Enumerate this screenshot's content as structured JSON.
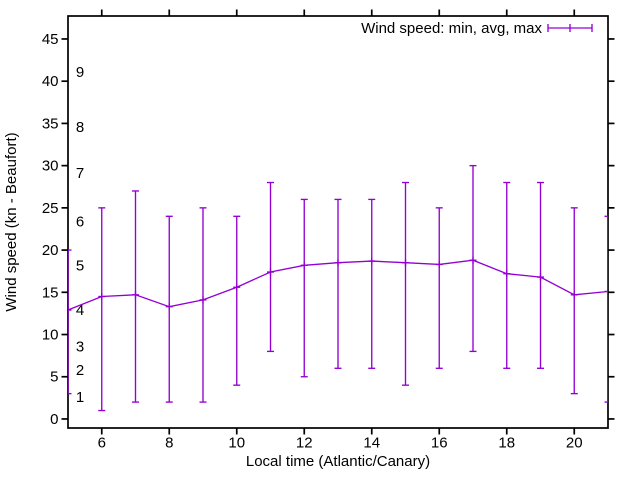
{
  "window": {
    "background": "#ffffff"
  },
  "colors": {
    "series": "#9400D3",
    "axis": "#000000",
    "text": "#000000",
    "background": "#ffffff"
  },
  "chart_data": {
    "type": "line",
    "subtype": "yerrorlines",
    "title": "",
    "legend_label": "Wind speed: min, avg, max",
    "legend_position": "top-right-inside",
    "xlabel": "Local time (Atlantic/Canary)",
    "ylabel": "Wind speed (kn - Beaufort)",
    "xlim": [
      5,
      21
    ],
    "ylim": [
      -1.07,
      47.72
    ],
    "xticks": [
      6,
      8,
      10,
      12,
      14,
      16,
      18,
      20
    ],
    "yticks": [
      0,
      5,
      10,
      15,
      20,
      25,
      30,
      35,
      40,
      45
    ],
    "grid": false,
    "series_color": "#9400D3",
    "x": [
      5,
      6,
      7,
      8,
      9,
      10,
      11,
      12,
      13,
      14,
      15,
      16,
      17,
      18,
      19,
      20,
      21
    ],
    "series": [
      {
        "name": "min",
        "values": [
          3,
          1,
          2,
          2,
          2,
          4,
          8,
          5,
          6,
          6,
          4,
          6,
          8,
          6,
          6,
          3,
          2
        ]
      },
      {
        "name": "avg",
        "values": [
          12.9,
          14.5,
          14.7,
          13.3,
          14.1,
          15.6,
          17.4,
          18.2,
          18.5,
          18.7,
          18.5,
          18.3,
          18.8,
          17.2,
          16.8,
          14.7,
          15.1
        ]
      },
      {
        "name": "max",
        "values": [
          20,
          25,
          27,
          24,
          25,
          24,
          28,
          26,
          26,
          26,
          28,
          25,
          30,
          28,
          28,
          25,
          24
        ]
      }
    ],
    "beaufort_axis": {
      "labels": [
        "1",
        "2",
        "3",
        "4",
        "5",
        "6",
        "7",
        "8",
        "9"
      ],
      "positions_kn": [
        2.6,
        5.8,
        8.6,
        12.9,
        18.2,
        23.4,
        29.1,
        34.6,
        41.1
      ]
    }
  }
}
